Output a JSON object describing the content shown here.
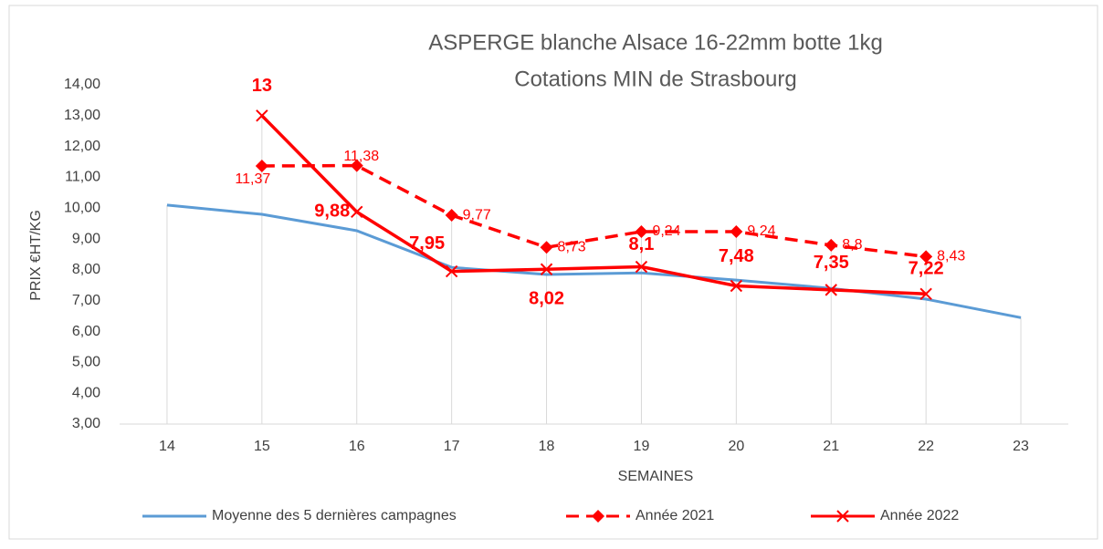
{
  "chart_data": {
    "type": "line",
    "title": [
      "ASPERGE blanche Alsace 16-22mm botte 1kg",
      "Cotations MIN de Strasbourg"
    ],
    "xlabel": "SEMAINES",
    "ylabel": "PRIX €HT/KG",
    "categories": [
      "14",
      "15",
      "16",
      "17",
      "18",
      "19",
      "20",
      "21",
      "22",
      "23"
    ],
    "ylim": [
      3,
      14
    ],
    "yticks": [
      {
        "value": 3,
        "label": "3,00"
      },
      {
        "value": 4,
        "label": "4,00"
      },
      {
        "value": 5,
        "label": "5,00"
      },
      {
        "value": 6,
        "label": "6,00"
      },
      {
        "value": 7,
        "label": "7,00"
      },
      {
        "value": 8,
        "label": "8,00"
      },
      {
        "value": 9,
        "label": "9,00"
      },
      {
        "value": 10,
        "label": "10,00"
      },
      {
        "value": 11,
        "label": "11,00"
      },
      {
        "value": 12,
        "label": "12,00"
      },
      {
        "value": 13,
        "label": "13,00"
      },
      {
        "value": 14,
        "label": "14,00"
      }
    ],
    "legend": "bottom",
    "series": [
      {
        "name": "Moyenne des 5 dernières campagnes",
        "color": "#5b9bd5",
        "style": "solid",
        "marker": "none",
        "values": [
          10.1,
          9.8,
          9.27,
          8.08,
          7.85,
          7.9,
          7.67,
          7.4,
          7.05,
          6.45
        ]
      },
      {
        "name": "Année 2021",
        "color": "#ff0000",
        "style": "dashed",
        "marker": "diamond",
        "values": [
          null,
          11.37,
          11.38,
          9.77,
          8.73,
          9.24,
          9.24,
          8.8,
          8.43,
          null
        ],
        "value_labels": [
          null,
          "11,37",
          "11,38",
          "9,77",
          "8,73",
          "9,24",
          "9,24",
          "8,8",
          "8,43",
          null
        ]
      },
      {
        "name": "Année 2022",
        "color": "#ff0000",
        "style": "solid",
        "marker": "x",
        "values": [
          null,
          13,
          9.88,
          7.95,
          8.02,
          8.1,
          7.48,
          7.35,
          7.22,
          null
        ],
        "value_labels": [
          null,
          "13",
          "9,88",
          "7,95",
          "8,02",
          "8,1",
          "7,48",
          "7,35",
          "7,22",
          null
        ]
      }
    ]
  }
}
